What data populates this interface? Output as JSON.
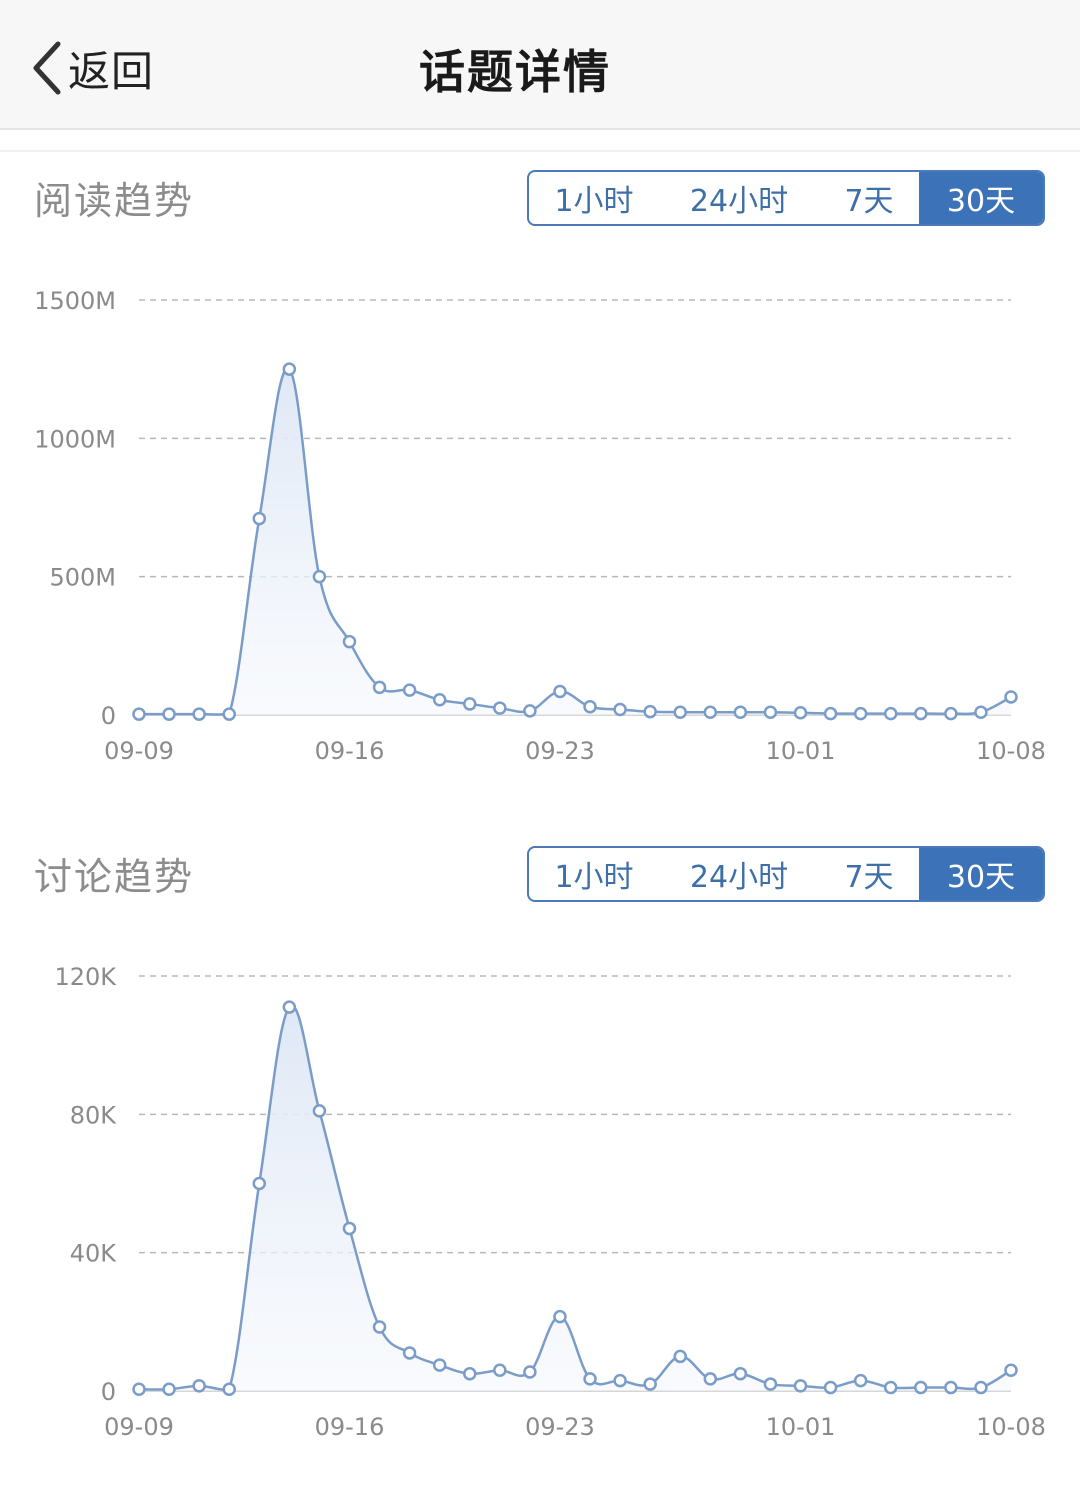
{
  "nav": {
    "back_label": "返回",
    "title": "话题详情"
  },
  "tabs": [
    "1小时",
    "24小时",
    "7天",
    "30天"
  ],
  "active_tab": "30天",
  "colors": {
    "accent": "#3c73b8",
    "line": "#7a9cc8",
    "fill": "#e6eef9",
    "grid": "#b8b8b8"
  },
  "sections": [
    {
      "title": "阅读趋势"
    },
    {
      "title": "讨论趋势"
    }
  ],
  "chart_data": [
    {
      "type": "area",
      "title": "阅读趋势",
      "y_unit_labels": [
        "0",
        "500M",
        "1000M",
        "1500M"
      ],
      "ylim": [
        0,
        1500
      ],
      "y_unit": "M",
      "x_tick_labels": [
        "09-09",
        "09-16",
        "09-23",
        "10-01",
        "10-08"
      ],
      "x": [
        "09-09",
        "09-10",
        "09-11",
        "09-12",
        "09-13",
        "09-14",
        "09-15",
        "09-16",
        "09-17",
        "09-18",
        "09-19",
        "09-20",
        "09-21",
        "09-22",
        "09-23",
        "09-24",
        "09-25",
        "09-26",
        "09-27",
        "09-28",
        "09-29",
        "09-30",
        "10-01",
        "10-02",
        "10-03",
        "10-04",
        "10-05",
        "10-06",
        "10-07",
        "10-08"
      ],
      "values": [
        3,
        3,
        3,
        3,
        710,
        1250,
        500,
        265,
        100,
        90,
        55,
        40,
        25,
        15,
        85,
        30,
        20,
        12,
        10,
        10,
        10,
        10,
        8,
        5,
        5,
        5,
        5,
        5,
        10,
        65
      ],
      "grid": true
    },
    {
      "type": "area",
      "title": "讨论趋势",
      "y_unit_labels": [
        "0",
        "40K",
        "80K",
        "120K"
      ],
      "ylim": [
        0,
        120
      ],
      "y_unit": "K",
      "x_tick_labels": [
        "09-09",
        "09-16",
        "09-23",
        "10-01",
        "10-08"
      ],
      "x": [
        "09-09",
        "09-10",
        "09-11",
        "09-12",
        "09-13",
        "09-14",
        "09-15",
        "09-16",
        "09-17",
        "09-18",
        "09-19",
        "09-20",
        "09-21",
        "09-22",
        "09-23",
        "09-24",
        "09-25",
        "09-26",
        "09-27",
        "09-28",
        "09-29",
        "09-30",
        "10-01",
        "10-02",
        "10-03",
        "10-04",
        "10-05",
        "10-06",
        "10-07",
        "10-08"
      ],
      "values": [
        0.5,
        0.5,
        1.5,
        0.5,
        60,
        111,
        81,
        47,
        18.5,
        11,
        7.5,
        5,
        6,
        5.5,
        21.5,
        3.5,
        3,
        2,
        10,
        3.5,
        5,
        2,
        1.5,
        1,
        3,
        1,
        1,
        1,
        1,
        6
      ],
      "grid": true
    }
  ]
}
